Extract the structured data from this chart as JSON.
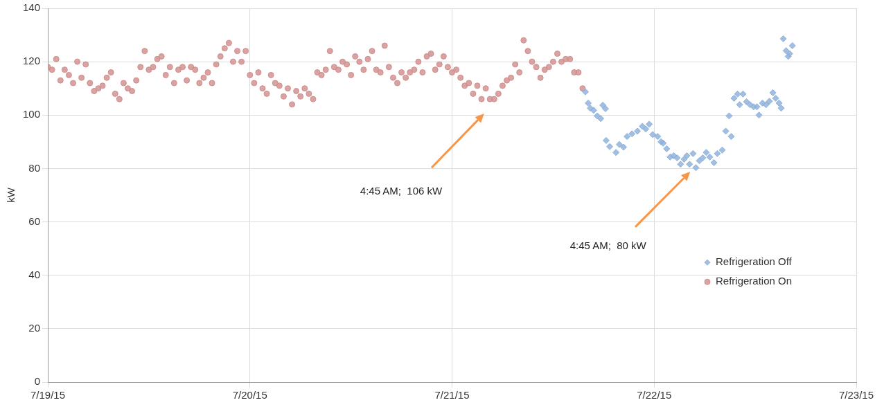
{
  "chart_data": {
    "type": "scatter",
    "ylabel": "kW",
    "legend": "right",
    "grid": true,
    "xlim": [
      "--07-19",
      "--07-23"
    ],
    "xticks": [
      {
        "value": "--07-19",
        "label": "7/19/15"
      },
      {
        "value": "--07-20",
        "label": "7/20/15"
      },
      {
        "value": "--07-21",
        "label": "7/21/15"
      },
      {
        "value": "--07-22",
        "label": "7/22/15"
      },
      {
        "value": "--07-23",
        "label": "7/23/15"
      }
    ],
    "ylim": [
      0,
      140
    ],
    "yticks": [
      0,
      20,
      40,
      60,
      80,
      100,
      120,
      140
    ],
    "annotations": [
      "4:45 AM;  106 kW",
      "4:45 AM;  80 kW"
    ],
    "series": [
      {
        "name": "Refrigeration Off",
        "color": "#8db1dc",
        "marker": "diamond",
        "x": [
          "--07-21T15:50",
          "--07-21T16:10",
          "--07-21T16:25",
          "--07-21T16:49",
          "--07-21T17:14",
          "--07-21T17:39",
          "--07-21T17:54",
          "--07-21T18:13",
          "--07-21T18:18",
          "--07-21T18:43",
          "--07-21T19:28",
          "--07-21T19:52",
          "--07-21T20:22",
          "--07-21T20:47",
          "--07-21T21:22",
          "--07-21T22:01",
          "--07-21T22:36",
          "--07-21T23:00",
          "--07-21T23:25",
          "--07-21T23:50",
          "--07-22T00:25",
          "--07-22T00:49",
          "--07-22T01:04",
          "--07-22T01:29",
          "--07-22T01:54",
          "--07-22T02:19",
          "--07-22T02:43",
          "--07-22T03:08",
          "--07-22T03:33",
          "--07-22T03:53",
          "--07-22T04:12",
          "--07-22T04:37",
          "--07-22T04:57",
          "--07-22T05:22",
          "--07-22T05:46",
          "--07-22T06:11",
          "--07-22T06:36",
          "--07-22T07:06",
          "--07-22T07:30",
          "--07-22T08:05",
          "--07-22T08:30",
          "--07-22T08:54",
          "--07-22T09:09",
          "--07-22T09:29",
          "--07-22T09:54",
          "--07-22T10:09",
          "--07-22T10:33",
          "--07-22T10:58",
          "--07-22T11:23",
          "--07-22T11:48",
          "--07-22T12:12",
          "--07-22T12:27",
          "--07-22T12:52",
          "--07-22T13:17",
          "--07-22T13:41",
          "--07-22T14:06",
          "--07-22T14:26",
          "--07-22T14:50",
          "--07-22T15:05",
          "--07-22T15:20",
          "--07-22T15:40",
          "--07-22T15:55",
          "--07-22T16:05",
          "--07-22T16:25"
        ],
        "values": [
          108.7,
          104.5,
          102.6,
          101.8,
          99.7,
          98.7,
          103.7,
          102.4,
          90.5,
          88.2,
          86,
          89,
          88,
          92,
          93,
          94,
          95.8,
          94.8,
          96.6,
          92.7,
          92,
          90,
          89.5,
          87.4,
          84.3,
          84.8,
          84,
          81.6,
          83.5,
          84.8,
          81.6,
          85.6,
          80.3,
          82.9,
          84,
          86,
          84.3,
          82.2,
          85.6,
          86.9,
          94,
          99.7,
          92,
          106.3,
          107.9,
          103.9,
          107.9,
          105,
          103.9,
          103.1,
          103.1,
          100,
          104.5,
          103.9,
          105.2,
          108.4,
          106.3,
          104.5,
          102.6,
          128.6,
          124.1,
          122,
          123,
          126
        ]
      },
      {
        "name": "Refrigeration On",
        "color": "#d08e8d",
        "marker": "circle",
        "x": [
          "--07-19T00:00",
          "--07-19T00:30",
          "--07-19T01:00",
          "--07-19T01:30",
          "--07-19T02:00",
          "--07-19T02:30",
          "--07-19T03:00",
          "--07-19T03:30",
          "--07-19T04:00",
          "--07-19T04:30",
          "--07-19T05:00",
          "--07-19T05:30",
          "--07-19T06:00",
          "--07-19T06:30",
          "--07-19T07:00",
          "--07-19T07:30",
          "--07-19T08:00",
          "--07-19T08:30",
          "--07-19T09:00",
          "--07-19T09:30",
          "--07-19T10:00",
          "--07-19T10:30",
          "--07-19T11:00",
          "--07-19T11:30",
          "--07-19T12:00",
          "--07-19T12:30",
          "--07-19T13:00",
          "--07-19T13:30",
          "--07-19T14:00",
          "--07-19T14:30",
          "--07-19T15:00",
          "--07-19T15:30",
          "--07-19T16:00",
          "--07-19T16:30",
          "--07-19T17:00",
          "--07-19T17:30",
          "--07-19T18:00",
          "--07-19T18:30",
          "--07-19T19:00",
          "--07-19T19:30",
          "--07-19T20:00",
          "--07-19T20:30",
          "--07-19T21:00",
          "--07-19T21:30",
          "--07-19T22:00",
          "--07-19T22:30",
          "--07-19T23:00",
          "--07-19T23:30",
          "--07-20T00:00",
          "--07-20T00:30",
          "--07-20T01:00",
          "--07-20T01:30",
          "--07-20T02:00",
          "--07-20T02:30",
          "--07-20T03:00",
          "--07-20T03:30",
          "--07-20T04:00",
          "--07-20T04:30",
          "--07-20T05:00",
          "--07-20T05:30",
          "--07-20T06:00",
          "--07-20T06:30",
          "--07-20T07:00",
          "--07-20T07:30",
          "--07-20T08:00",
          "--07-20T08:30",
          "--07-20T09:00",
          "--07-20T09:30",
          "--07-20T10:00",
          "--07-20T10:30",
          "--07-20T11:00",
          "--07-20T11:30",
          "--07-20T12:00",
          "--07-20T12:30",
          "--07-20T13:00",
          "--07-20T13:30",
          "--07-20T14:00",
          "--07-20T14:30",
          "--07-20T15:00",
          "--07-20T15:30",
          "--07-20T16:00",
          "--07-20T16:30",
          "--07-20T17:00",
          "--07-20T17:30",
          "--07-20T18:00",
          "--07-20T18:30",
          "--07-20T19:00",
          "--07-20T19:30",
          "--07-20T20:00",
          "--07-20T20:30",
          "--07-20T21:00",
          "--07-20T21:30",
          "--07-20T22:00",
          "--07-20T22:30",
          "--07-20T23:00",
          "--07-20T23:30",
          "--07-21T00:00",
          "--07-21T00:30",
          "--07-21T01:00",
          "--07-21T01:30",
          "--07-21T02:00",
          "--07-21T02:30",
          "--07-21T03:00",
          "--07-21T03:30",
          "--07-21T04:00",
          "--07-21T04:30",
          "--07-21T05:00",
          "--07-21T05:30",
          "--07-21T06:00",
          "--07-21T06:30",
          "--07-21T07:00",
          "--07-21T07:30",
          "--07-21T08:00",
          "--07-21T08:30",
          "--07-21T09:00",
          "--07-21T09:30",
          "--07-21T10:00",
          "--07-21T10:30",
          "--07-21T11:00",
          "--07-21T11:30",
          "--07-21T12:00",
          "--07-21T12:30",
          "--07-21T13:00",
          "--07-21T13:30",
          "--07-21T14:00",
          "--07-21T14:30",
          "--07-21T15:00",
          "--07-21T15:30"
        ],
        "values": [
          118,
          117,
          121,
          113,
          117,
          115,
          112,
          120,
          114,
          119,
          112,
          109,
          110,
          111,
          114,
          116,
          108,
          106,
          112,
          110,
          109,
          113,
          118,
          124,
          117,
          118,
          121,
          122,
          115,
          118,
          112,
          117,
          118,
          113,
          118,
          117,
          112,
          114,
          116,
          112,
          119,
          122,
          125,
          127,
          120,
          124,
          120,
          124,
          115,
          112,
          116,
          110,
          108,
          115,
          112,
          111,
          107,
          110,
          104,
          109,
          107,
          110,
          108,
          106,
          116,
          115,
          117,
          124,
          118,
          117,
          120,
          119,
          115,
          122,
          120,
          117,
          121,
          124,
          117,
          116,
          126,
          118,
          114,
          112,
          116,
          114,
          116,
          117,
          120,
          116,
          122,
          123,
          117,
          119,
          122,
          118,
          116,
          117,
          114,
          111,
          112,
          108,
          111,
          106,
          110,
          106,
          106,
          108,
          111,
          113,
          114,
          119,
          116,
          128,
          124,
          120,
          118,
          114,
          117,
          118,
          120,
          123,
          120,
          121,
          121,
          116,
          116,
          110
        ]
      }
    ]
  }
}
